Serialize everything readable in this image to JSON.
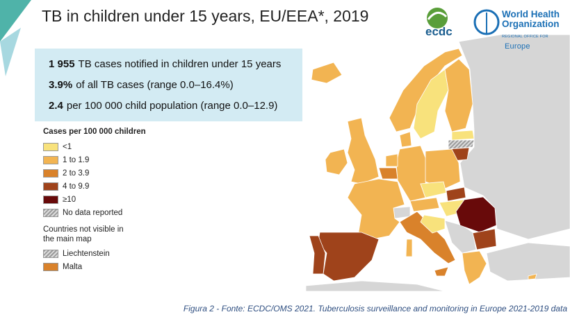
{
  "header": {
    "title": "TB in children under 15 years, EU/EEA*, 2019"
  },
  "stats": [
    {
      "bold": "1 955",
      "text": "TB cases notified in children under 15 years"
    },
    {
      "bold": "3.9%",
      "text": "of all TB cases (range 0.0–16.4%)"
    },
    {
      "bold": "2.4",
      "text": "per 100 000 child population (range 0.0–12.9)"
    }
  ],
  "legend": {
    "title": "Cases per 100 000 children",
    "items": [
      {
        "label": "<1",
        "color": "#f8e27c"
      },
      {
        "label": "1 to 1.9",
        "color": "#f2b452"
      },
      {
        "label": "2 to 3.9",
        "color": "#d9822b"
      },
      {
        "label": "4 to 9.9",
        "color": "#9f431b"
      },
      {
        "label": "≥10",
        "color": "#680a0a"
      },
      {
        "label": "No data reported",
        "color": "hatch"
      }
    ],
    "not_visible_title": "Countries not visible in the main map",
    "not_visible": [
      {
        "label": "Liechtenstein",
        "color": "hatch"
      },
      {
        "label": "Malta",
        "color": "#d9822b"
      }
    ]
  },
  "logos": {
    "ecdc": "ecdc",
    "who_line1": "World Health",
    "who_line2": "Organization",
    "who_region": "REGIONAL OFFICE FOR",
    "who_europe": "Europe"
  },
  "caption": "Figura 2 - Fonte: ECDC/OMS 2021. Tuberculosis surveillance and monitoring in Europe 2021-2019 data"
}
